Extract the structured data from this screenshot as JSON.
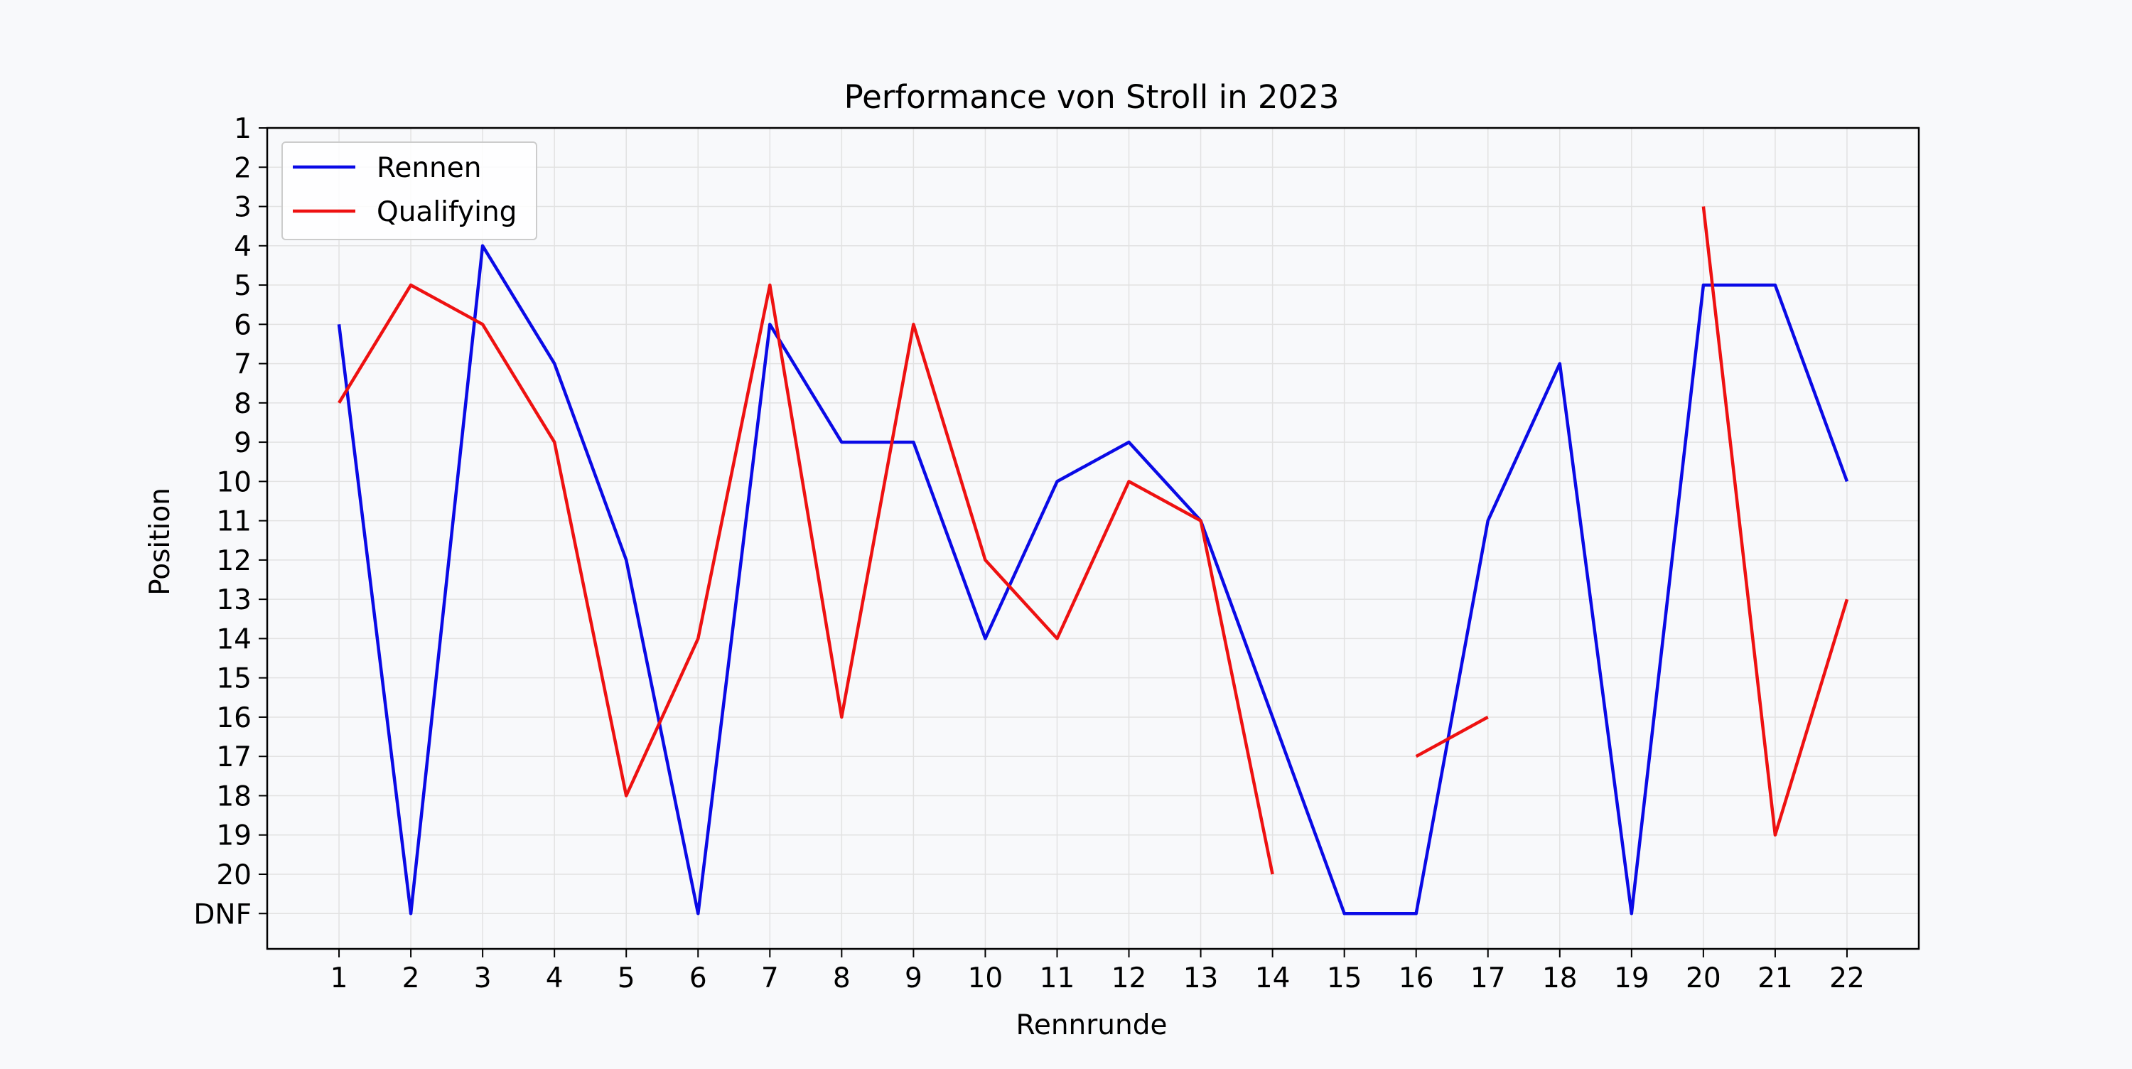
{
  "chart_data": {
    "type": "line",
    "title": "Performance von Stroll in 2023",
    "xlabel": "Rennrunde",
    "ylabel": "Position",
    "x": [
      1,
      2,
      3,
      4,
      5,
      6,
      7,
      8,
      9,
      10,
      11,
      12,
      13,
      14,
      15,
      16,
      17,
      18,
      19,
      20,
      21,
      22
    ],
    "xlim": [
      0,
      23
    ],
    "y_ticks": [
      1,
      2,
      3,
      4,
      5,
      6,
      7,
      8,
      9,
      10,
      11,
      12,
      13,
      14,
      15,
      16,
      17,
      18,
      19,
      20,
      21
    ],
    "y_tick_labels": [
      "1",
      "2",
      "3",
      "4",
      "5",
      "6",
      "7",
      "8",
      "9",
      "10",
      "11",
      "12",
      "13",
      "14",
      "15",
      "16",
      "17",
      "18",
      "19",
      "20",
      "DNF"
    ],
    "ylim": [
      21.9,
      1
    ],
    "y_inverted": true,
    "grid": true,
    "legend_position": "top-left",
    "series": [
      {
        "name": "Rennen",
        "color": "#0a0ae6",
        "values": [
          6,
          21,
          4,
          7,
          12,
          21,
          6,
          9,
          9,
          14,
          10,
          9,
          11,
          16,
          21,
          21,
          11,
          7,
          21,
          5,
          5,
          10
        ]
      },
      {
        "name": "Qualifying",
        "color": "#ee1111",
        "values": [
          8,
          5,
          6,
          9,
          18,
          14,
          5,
          16,
          6,
          12,
          14,
          10,
          11,
          20,
          null,
          17,
          16,
          null,
          null,
          3,
          19,
          13
        ]
      }
    ]
  }
}
